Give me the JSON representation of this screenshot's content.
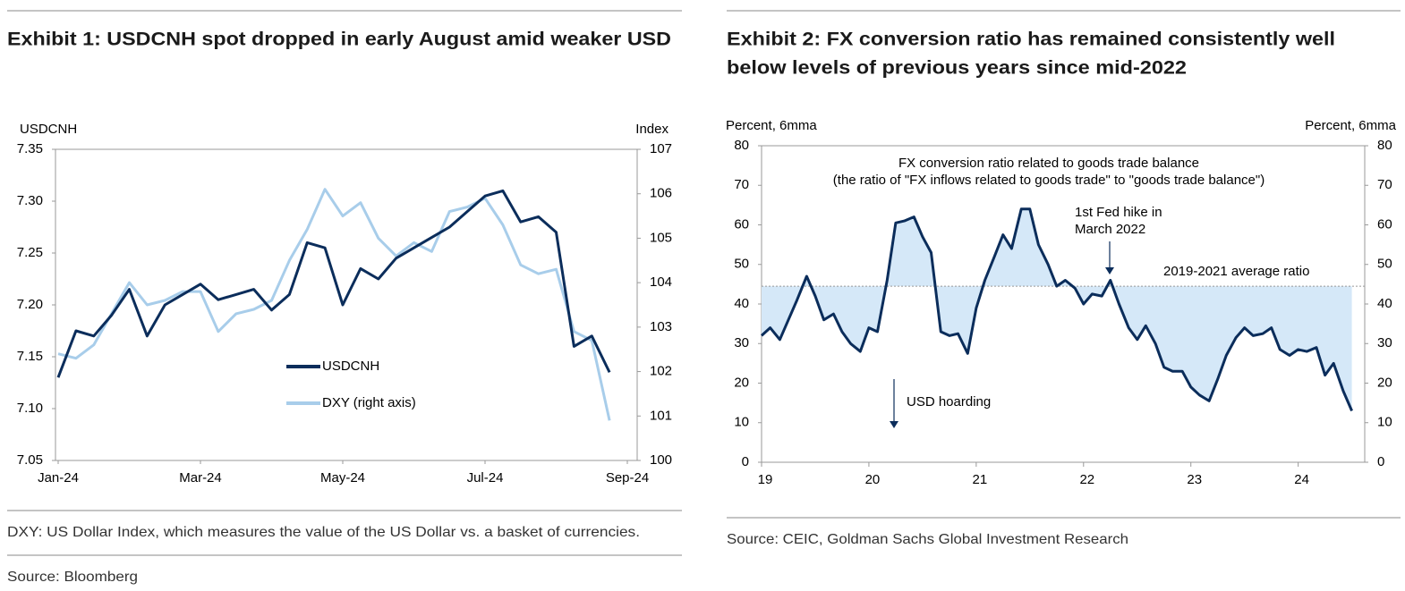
{
  "chart_data": [
    {
      "type": "line",
      "title": "Exhibit 1: USDCNH spot dropped in early August amid weaker USD",
      "y_label": "USDCNH",
      "y2_label": "Index",
      "categories": [
        "Jan-24",
        null,
        null,
        null,
        null,
        null,
        null,
        null,
        "Mar-24",
        null,
        null,
        null,
        null,
        null,
        null,
        null,
        "May-24",
        null,
        null,
        null,
        null,
        null,
        null,
        null,
        "Jul-24",
        null,
        null,
        null,
        null,
        null,
        null,
        null,
        "Sep-24"
      ],
      "series": [
        {
          "name": "USDCNH",
          "color": "#0b2d5b",
          "values": [
            7.13,
            7.175,
            7.17,
            7.19,
            7.215,
            7.17,
            7.2,
            7.21,
            7.22,
            7.205,
            7.21,
            7.215,
            7.195,
            7.21,
            7.26,
            7.255,
            7.2,
            7.235,
            7.225,
            7.245,
            7.255,
            7.265,
            7.275,
            7.29,
            7.305,
            7.31,
            7.28,
            7.285,
            7.27,
            7.16,
            7.17,
            7.135,
            null
          ]
        },
        {
          "name": "DXY (right axis)",
          "color": "#a8cdea",
          "axis": "y2",
          "values": [
            102.4,
            102.3,
            102.6,
            103.3,
            104.0,
            103.5,
            103.6,
            103.8,
            103.8,
            102.9,
            103.3,
            103.4,
            103.6,
            104.5,
            105.2,
            106.1,
            105.5,
            105.8,
            105.0,
            104.6,
            104.9,
            104.7,
            105.6,
            105.7,
            105.9,
            105.3,
            104.4,
            104.2,
            104.3,
            102.9,
            102.7,
            100.9,
            null
          ]
        }
      ],
      "ylim": [
        7.05,
        7.35
      ],
      "yticks": [
        {
          "value": 7.05,
          "label": "7.05"
        },
        {
          "value": 7.1,
          "label": "7.10"
        },
        {
          "value": 7.15,
          "label": "7.15"
        },
        {
          "value": 7.2,
          "label": "7.20"
        },
        {
          "value": 7.25,
          "label": "7.25"
        },
        {
          "value": 7.3,
          "label": "7.30"
        },
        {
          "value": 7.35,
          "label": "7.35"
        }
      ],
      "y2lim": [
        100,
        107
      ],
      "y2ticks": [
        100,
        101,
        102,
        103,
        104,
        105,
        106,
        107
      ],
      "legend": "lower-center",
      "note": "DXY: US Dollar Index, which measures the value of the US Dollar vs. a basket of currencies.",
      "source": "Source: Bloomberg"
    },
    {
      "type": "line",
      "title": [
        "Exhibit 2: FX conversion ratio has remained consistently well",
        "below levels of previous years since mid-2022"
      ],
      "y_label": "Percent, 6mma",
      "y2_label": "Percent, 6mma",
      "x": [
        19,
        19.08,
        19.17,
        19.25,
        19.33,
        19.42,
        19.5,
        19.58,
        19.67,
        19.75,
        19.83,
        19.92,
        20,
        20.08,
        20.17,
        20.25,
        20.33,
        20.42,
        20.5,
        20.58,
        20.67,
        20.75,
        20.83,
        20.92,
        21,
        21.08,
        21.17,
        21.25,
        21.33,
        21.42,
        21.5,
        21.58,
        21.67,
        21.75,
        21.83,
        21.92,
        22,
        22.08,
        22.17,
        22.25,
        22.33,
        22.42,
        22.5,
        22.58,
        22.67,
        22.75,
        22.83,
        22.92,
        23,
        23.08,
        23.17,
        23.25,
        23.33,
        23.42,
        23.5,
        23.58,
        23.67,
        23.75,
        23.83,
        23.92,
        24,
        24.08,
        24.17,
        24.25,
        24.33,
        24.42,
        24.5
      ],
      "series": [
        {
          "name": "FX conversion ratio",
          "color": "#0b2d5b",
          "values": [
            32,
            34,
            31,
            36,
            41,
            47,
            42,
            36,
            37.5,
            33,
            30,
            28,
            34,
            33,
            46,
            60.5,
            61,
            62,
            57,
            53,
            33,
            32,
            32.5,
            27.5,
            39,
            46,
            52,
            57.5,
            54,
            64,
            64,
            55,
            50,
            44.5,
            46,
            44,
            40,
            42.5,
            42,
            46,
            40,
            34,
            31,
            34.5,
            30,
            24,
            23,
            23,
            19,
            17,
            15.5,
            21,
            27,
            31.5,
            34,
            32,
            32.5,
            34,
            28.5,
            27,
            28.5,
            28,
            29,
            22,
            25,
            18,
            13
          ]
        }
      ],
      "average_line": {
        "value": 44.5,
        "label": "2019-2021 average ratio",
        "color": "#d5e8f8"
      },
      "annotations": [
        "FX conversion ratio related to goods trade balance",
        "(the ratio of \"FX inflows related to goods trade\" to \"goods trade balance\")"
      ],
      "fed_hike_note": [
        "1st Fed hike in",
        "March 2022"
      ],
      "hoarding_note": "USD hoarding",
      "xlim": [
        19,
        24.62
      ],
      "xticks": [
        19,
        20,
        21,
        22,
        23,
        24
      ],
      "ylim": [
        0,
        80
      ],
      "yticks": [
        0,
        10,
        20,
        30,
        40,
        50,
        60,
        70,
        80
      ],
      "y2lim": [
        0,
        80
      ],
      "y2ticks": [
        0,
        10,
        20,
        30,
        40,
        50,
        60,
        70,
        80
      ],
      "source": "Source: CEIC, Goldman Sachs Global Investment Research"
    }
  ]
}
